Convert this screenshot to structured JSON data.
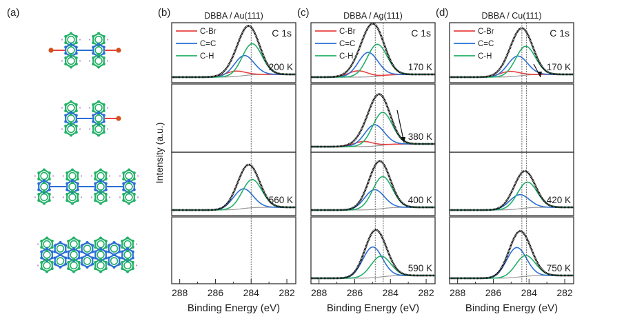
{
  "figure": {
    "panel_a_label": "(a)",
    "molecule_icons": [
      "dbba-monomer-icon",
      "debrominated-intermediate-icon",
      "polymer-chain-icon",
      "graphene-nanoribbon-icon"
    ]
  },
  "colors": {
    "c_br": "#e8413f",
    "c_eq_c": "#2a6fd6",
    "c_h": "#22b067",
    "envelope": "#111111",
    "background_line": "#999999"
  },
  "chart_data": [
    {
      "type": "line",
      "panel_label": "(b)",
      "title": "DBBA / Au(111)",
      "core_level": "C 1s",
      "xlabel": "Binding Energy (eV)",
      "ylabel": "Intensity (a.u.)",
      "xlim": [
        288.45,
        281.5
      ],
      "xticks": [
        288,
        286,
        284,
        282
      ],
      "xtick_labels": [
        "288",
        "286",
        "284",
        "282"
      ],
      "reference_lines_eV": [
        284.0
      ],
      "legend": [
        "C-Br",
        "C=C",
        "C-H"
      ],
      "legend_position": "top-left",
      "spectra": [
        {
          "temperature": "200 K",
          "components": {
            "C-Br": {
              "center": 284.9,
              "amp": 0.12
            },
            "C=C": {
              "center": 284.4,
              "amp": 0.45
            },
            "C-H": {
              "center": 283.95,
              "amp": 0.7
            }
          },
          "arrow": false
        },
        {
          "temperature": "",
          "empty": true
        },
        {
          "temperature": "560 K",
          "components": {
            "C=C": {
              "center": 284.45,
              "amp": 0.42
            },
            "C-H": {
              "center": 283.95,
              "amp": 0.6
            }
          },
          "arrow": false
        },
        {
          "temperature": "",
          "empty": true
        }
      ]
    },
    {
      "type": "line",
      "panel_label": "(c)",
      "title": "DBBA / Ag(111)",
      "core_level": "C 1s",
      "xlabel": "Binding Energy (eV)",
      "xlim": [
        288.45,
        281.5
      ],
      "xticks": [
        288,
        286,
        284,
        282
      ],
      "xtick_labels": [
        "288",
        "286",
        "284",
        "282"
      ],
      "reference_lines_eV": [
        284.85,
        284.4
      ],
      "legend": [
        "C-Br",
        "C=C",
        "C-H"
      ],
      "legend_position": "top-left",
      "spectra": [
        {
          "temperature": "170 K",
          "components": {
            "C-Br": {
              "center": 285.8,
              "amp": 0.14
            },
            "C=C": {
              "center": 285.25,
              "amp": 0.55
            },
            "C-H": {
              "center": 284.75,
              "amp": 0.72
            }
          },
          "arrow": false
        },
        {
          "temperature": "380 K",
          "components": {
            "C-Br": {
              "center": 285.5,
              "amp": 0.1
            },
            "C=C": {
              "center": 284.9,
              "amp": 0.42
            },
            "C-H": {
              "center": 284.45,
              "amp": 0.65
            }
          },
          "arrow": true
        },
        {
          "temperature": "400 K",
          "components": {
            "C=C": {
              "center": 284.9,
              "amp": 0.42
            },
            "C-H": {
              "center": 284.45,
              "amp": 0.68
            }
          },
          "arrow": false
        },
        {
          "temperature": "590 K",
          "components": {
            "C=C": {
              "center": 285.0,
              "amp": 0.62
            },
            "C-H": {
              "center": 284.55,
              "amp": 0.42
            }
          },
          "arrow": false
        }
      ]
    },
    {
      "type": "line",
      "panel_label": "(d)",
      "title": "DBBA / Cu(111)",
      "core_level": "C 1s",
      "xlabel": "Binding Energy (eV)",
      "xlim": [
        288.45,
        281.5
      ],
      "xticks": [
        288,
        286,
        284,
        282
      ],
      "xtick_labels": [
        "288",
        "286",
        "284",
        "282"
      ],
      "reference_lines_eV": [
        284.4,
        284.15
      ],
      "legend": [
        "C-Br",
        "C=C",
        "C-H"
      ],
      "legend_position": "top-left",
      "spectra": [
        {
          "temperature": "170 K",
          "components": {
            "C-Br": {
              "center": 285.1,
              "amp": 0.12
            },
            "C=C": {
              "center": 284.65,
              "amp": 0.45
            },
            "C-H": {
              "center": 284.2,
              "amp": 0.65
            }
          },
          "arrow": true
        },
        {
          "temperature": "",
          "empty": true
        },
        {
          "temperature": "420 K",
          "components": {
            "C=C": {
              "center": 284.55,
              "amp": 0.3
            },
            "C-H": {
              "center": 284.1,
              "amp": 0.55
            }
          },
          "arrow": false
        },
        {
          "temperature": "750 K",
          "components": {
            "C=C": {
              "center": 284.7,
              "amp": 0.6
            },
            "C-H": {
              "center": 284.2,
              "amp": 0.42
            }
          },
          "arrow": false
        }
      ]
    }
  ]
}
